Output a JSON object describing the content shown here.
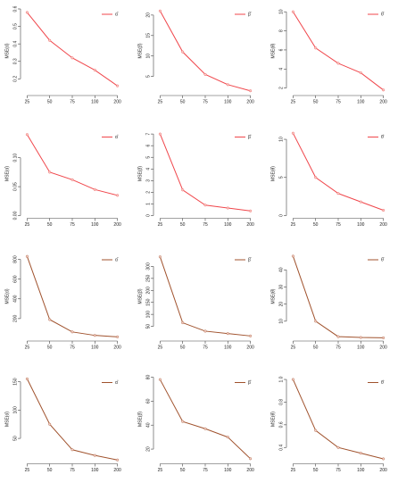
{
  "chart_data": [
    {
      "type": "line",
      "categories": [
        "25",
        "50",
        "75",
        "100",
        "200"
      ],
      "ylabel": "MSE(α̂)",
      "ylim": [
        0.12,
        0.6
      ],
      "yticks": [
        0.1,
        0.2,
        0.3,
        0.4,
        0.5,
        0.6
      ],
      "series": [
        {
          "name": "α̂",
          "color": "#f0464b",
          "values": [
            0.58,
            0.42,
            0.32,
            0.25,
            0.16
          ]
        }
      ]
    },
    {
      "type": "line",
      "categories": [
        "25",
        "50",
        "75",
        "100",
        "200"
      ],
      "ylabel": "MSE(β̂)",
      "ylim": [
        1,
        21.5
      ],
      "yticks": [
        5,
        10,
        15,
        20
      ],
      "series": [
        {
          "name": "β̂",
          "color": "#f0464b",
          "values": [
            21,
            11,
            5.5,
            3,
            1.5
          ]
        }
      ]
    },
    {
      "type": "line",
      "categories": [
        "25",
        "50",
        "75",
        "100",
        "200"
      ],
      "ylabel": "MSE(θ̂)",
      "ylim": [
        1.5,
        10.3
      ],
      "yticks": [
        2,
        4,
        6,
        8,
        10
      ],
      "series": [
        {
          "name": "θ̂",
          "color": "#f0464b",
          "values": [
            10,
            6.2,
            4.6,
            3.6,
            1.8
          ]
        }
      ]
    },
    {
      "type": "line",
      "categories": [
        "25",
        "50",
        "75",
        "100",
        "200"
      ],
      "ylabel": "MSE(α̂)",
      "ylim": [
        0.0,
        0.145
      ],
      "yticks": [
        {
          "value": 0,
          "label": "0.00"
        },
        0.05,
        {
          "value": 0.1,
          "label": "0.10"
        }
      ],
      "series": [
        {
          "name": "α̂",
          "color": "#f0464b",
          "values": [
            0.14,
            0.075,
            0.062,
            0.045,
            0.035
          ]
        }
      ]
    },
    {
      "type": "line",
      "categories": [
        "25",
        "50",
        "75",
        "100",
        "200"
      ],
      "ylabel": "MSE(β̂)",
      "ylim": [
        0,
        7.2
      ],
      "yticks": [
        0,
        1,
        2,
        3,
        4,
        5,
        6,
        7
      ],
      "series": [
        {
          "name": "β̂",
          "color": "#f0464b",
          "values": [
            7,
            2.2,
            0.9,
            0.65,
            0.4
          ]
        }
      ]
    },
    {
      "type": "line",
      "categories": [
        "25",
        "50",
        "75",
        "100",
        "200"
      ],
      "ylabel": "MSE(θ̂)",
      "ylim": [
        0,
        11
      ],
      "yticks": [
        0,
        5,
        10
      ],
      "series": [
        {
          "name": "θ̂",
          "color": "#f0464b",
          "values": [
            10.8,
            5,
            2.9,
            1.8,
            0.7
          ]
        }
      ]
    },
    {
      "type": "line",
      "categories": [
        "25",
        "50",
        "75",
        "100",
        "200"
      ],
      "ylabel": "MSE(α̂)",
      "ylim": [
        0,
        850
      ],
      "yticks": [
        200,
        400,
        600,
        800
      ],
      "series": [
        {
          "name": "α̂",
          "color": "#a0522d",
          "values": [
            830,
            190,
            65,
            30,
            15
          ]
        }
      ]
    },
    {
      "type": "line",
      "categories": [
        "25",
        "50",
        "75",
        "100",
        "200"
      ],
      "ylabel": "MSE(β̂)",
      "ylim": [
        0,
        350
      ],
      "yticks": [
        50,
        100,
        150,
        200,
        250,
        300
      ],
      "series": [
        {
          "name": "β̂",
          "color": "#a0522d",
          "values": [
            340,
            65,
            30,
            20,
            10
          ]
        }
      ]
    },
    {
      "type": "line",
      "categories": [
        "25",
        "50",
        "75",
        "100",
        "200"
      ],
      "ylabel": "MSE(θ̂)",
      "ylim": [
        0,
        49
      ],
      "yticks": [
        10,
        20,
        30,
        40
      ],
      "series": [
        {
          "name": "θ̂",
          "color": "#a0522d",
          "values": [
            48,
            10,
            1,
            0.5,
            0.3
          ]
        }
      ]
    },
    {
      "type": "line",
      "categories": [
        "25",
        "50",
        "75",
        "100",
        "200"
      ],
      "ylabel": "MSE(α̂)",
      "ylim": [
        10,
        158
      ],
      "yticks": [
        50,
        100,
        150
      ],
      "series": [
        {
          "name": "α̂",
          "color": "#a0522d",
          "values": [
            155,
            75,
            30,
            20,
            12
          ]
        }
      ]
    },
    {
      "type": "line",
      "categories": [
        "25",
        "50",
        "75",
        "100",
        "200"
      ],
      "ylabel": "MSE(β̂)",
      "ylim": [
        10,
        80
      ],
      "yticks": [
        20,
        40,
        60,
        80
      ],
      "series": [
        {
          "name": "β̂",
          "color": "#a0522d",
          "values": [
            78,
            43,
            37,
            30,
            12
          ]
        }
      ]
    },
    {
      "type": "line",
      "categories": [
        "25",
        "50",
        "75",
        "100",
        "200"
      ],
      "ylabel": "MSE(θ̂)",
      "ylim": [
        0.28,
        1.02
      ],
      "yticks": [
        0.4,
        0.6,
        0.8,
        {
          "value": 1,
          "label": "1.0"
        }
      ],
      "series": [
        {
          "name": "θ̂",
          "color": "#a0522d",
          "values": [
            1.0,
            0.55,
            0.4,
            0.35,
            0.3
          ]
        }
      ]
    }
  ]
}
